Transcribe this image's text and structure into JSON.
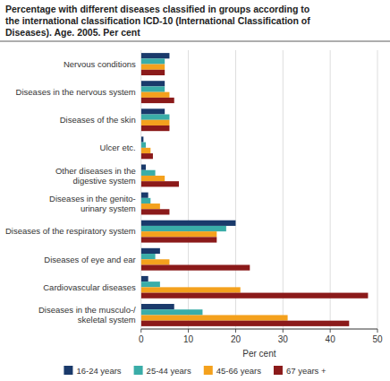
{
  "chart_data": {
    "type": "bar",
    "orientation": "horizontal",
    "title": "Percentage with different diseases classified in groups according to\nthe international classification ICD-10 (International Classification of\nDiseases). Age. 2005. Per cent",
    "categories": [
      "Nervous conditions",
      "Diseases in the nervous system",
      "Diseases of the skin",
      "Ulcer etc.",
      "Other diseases in the\ndigestive system",
      "Diseases in the genito-\nurinary system",
      "Diseases of the respiratory system",
      "Diseases of eye and ear",
      "Cardiovascular diseases",
      "Diseases in the musculo-/\nskeletal system"
    ],
    "series": [
      {
        "name": "16-24 years",
        "color": "#1a3a6b",
        "values": [
          6.0,
          5.0,
          5.0,
          0.5,
          1.0,
          1.5,
          20.0,
          4.0,
          1.5,
          7.0
        ]
      },
      {
        "name": "25-44 years",
        "color": "#3aada8",
        "values": [
          5.0,
          5.0,
          6.0,
          1.0,
          3.0,
          2.0,
          18.0,
          3.0,
          4.0,
          13.0
        ]
      },
      {
        "name": "45-66 years",
        "color": "#f4a11d",
        "values": [
          5.0,
          6.0,
          6.0,
          2.0,
          5.0,
          4.0,
          16.0,
          6.0,
          21.0,
          31.0
        ]
      },
      {
        "name": "67 years +",
        "color": "#8b1a1a",
        "values": [
          5.0,
          7.0,
          6.0,
          2.5,
          8.0,
          6.0,
          16.0,
          23.0,
          48.0,
          44.0
        ]
      }
    ],
    "xlabel": "Per cent",
    "xlim": [
      0,
      50
    ],
    "xticks": [
      0,
      10,
      20,
      30,
      40,
      50
    ],
    "grid": true,
    "legend": "bottom"
  }
}
